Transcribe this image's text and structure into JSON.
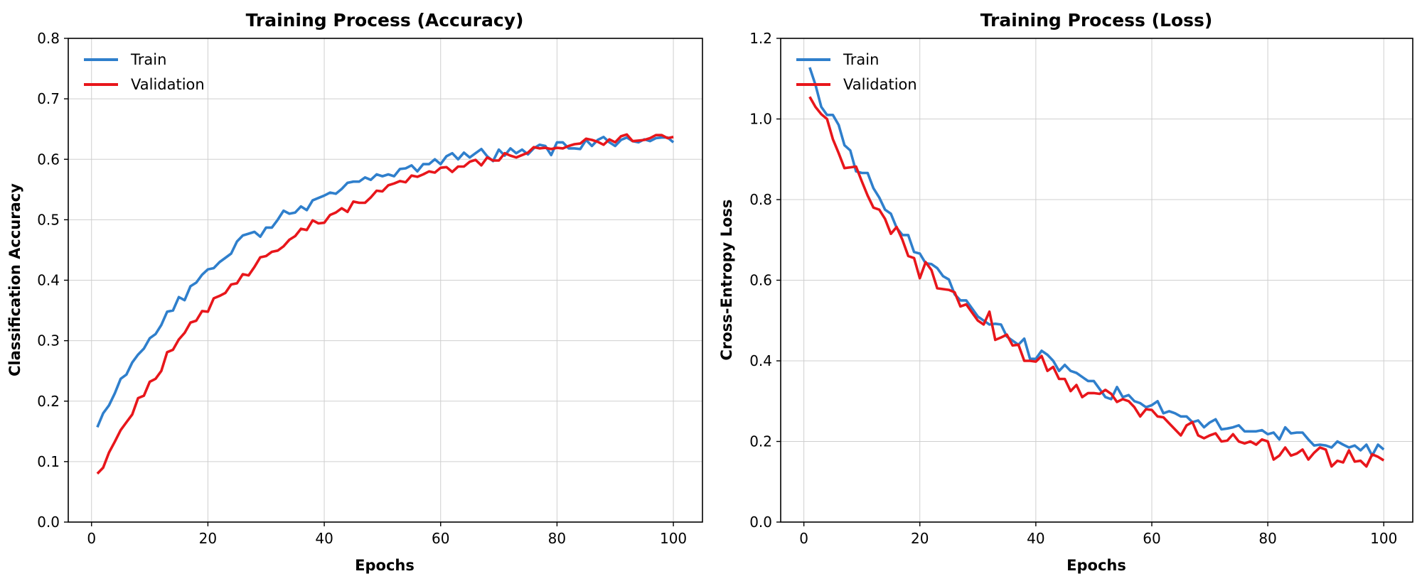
{
  "colors": {
    "train": "#2f7fcc",
    "validation": "#e8161b"
  },
  "chart_data": [
    {
      "type": "line",
      "title": "Training Process (Accuracy)",
      "xlabel": "Epochs",
      "ylabel": "Classification Accuracy",
      "xlim": [
        -4,
        105
      ],
      "ylim": [
        0,
        0.8
      ],
      "xticks": [
        0,
        20,
        40,
        60,
        80,
        100
      ],
      "yticks": [
        "0.0",
        "0.1",
        "0.2",
        "0.3",
        "0.4",
        "0.5",
        "0.6",
        "0.7",
        "0.8"
      ],
      "grid": true,
      "legend": "top-left",
      "x_start": 1,
      "series": [
        {
          "name": "Train",
          "key": "train",
          "values": [
            0.157,
            0.18,
            0.193,
            0.213,
            0.237,
            0.244,
            0.264,
            0.277,
            0.287,
            0.304,
            0.311,
            0.326,
            0.348,
            0.35,
            0.372,
            0.367,
            0.39,
            0.396,
            0.409,
            0.418,
            0.42,
            0.43,
            0.437,
            0.444,
            0.464,
            0.474,
            0.477,
            0.48,
            0.472,
            0.487,
            0.487,
            0.5,
            0.515,
            0.51,
            0.512,
            0.522,
            0.516,
            0.532,
            0.536,
            0.54,
            0.545,
            0.543,
            0.551,
            0.561,
            0.563,
            0.563,
            0.57,
            0.566,
            0.575,
            0.572,
            0.575,
            0.572,
            0.584,
            0.585,
            0.59,
            0.58,
            0.592,
            0.592,
            0.6,
            0.592,
            0.605,
            0.61,
            0.6,
            0.611,
            0.603,
            0.61,
            0.617,
            0.605,
            0.597,
            0.616,
            0.606,
            0.618,
            0.61,
            0.616,
            0.608,
            0.618,
            0.624,
            0.622,
            0.607,
            0.628,
            0.628,
            0.618,
            0.618,
            0.617,
            0.632,
            0.622,
            0.632,
            0.637,
            0.628,
            0.622,
            0.632,
            0.636,
            0.63,
            0.628,
            0.633,
            0.63,
            0.635,
            0.636,
            0.636,
            0.628
          ]
        },
        {
          "name": "Validation",
          "key": "validation",
          "values": [
            0.08,
            0.09,
            0.115,
            0.133,
            0.152,
            0.165,
            0.178,
            0.205,
            0.209,
            0.232,
            0.237,
            0.25,
            0.281,
            0.285,
            0.302,
            0.313,
            0.33,
            0.333,
            0.349,
            0.348,
            0.37,
            0.374,
            0.379,
            0.393,
            0.395,
            0.41,
            0.408,
            0.422,
            0.438,
            0.44,
            0.447,
            0.449,
            0.456,
            0.467,
            0.473,
            0.485,
            0.483,
            0.499,
            0.494,
            0.495,
            0.508,
            0.512,
            0.519,
            0.513,
            0.53,
            0.528,
            0.528,
            0.537,
            0.548,
            0.547,
            0.557,
            0.56,
            0.564,
            0.562,
            0.573,
            0.571,
            0.575,
            0.58,
            0.578,
            0.586,
            0.587,
            0.579,
            0.588,
            0.588,
            0.596,
            0.599,
            0.59,
            0.603,
            0.598,
            0.598,
            0.61,
            0.606,
            0.603,
            0.607,
            0.611,
            0.62,
            0.618,
            0.619,
            0.617,
            0.619,
            0.618,
            0.622,
            0.625,
            0.626,
            0.634,
            0.632,
            0.629,
            0.624,
            0.633,
            0.628,
            0.638,
            0.641,
            0.63,
            0.631,
            0.632,
            0.635,
            0.64,
            0.64,
            0.635,
            0.637
          ]
        }
      ]
    },
    {
      "type": "line",
      "title": "Training Process (Loss)",
      "xlabel": "Epochs",
      "ylabel": "Cross-Entropy Loss",
      "xlim": [
        -4,
        105
      ],
      "ylim": [
        0,
        1.2
      ],
      "xticks": [
        0,
        20,
        40,
        60,
        80,
        100
      ],
      "yticks": [
        "0.0",
        "0.2",
        "0.4",
        "0.6",
        "0.8",
        "1.0",
        "1.2"
      ],
      "grid": true,
      "legend": "top-left",
      "x_start": 1,
      "series": [
        {
          "name": "Train",
          "key": "train",
          "values": [
            1.128,
            1.085,
            1.03,
            1.01,
            1.01,
            0.985,
            0.935,
            0.922,
            0.87,
            0.866,
            0.866,
            0.828,
            0.805,
            0.775,
            0.765,
            0.73,
            0.712,
            0.712,
            0.67,
            0.666,
            0.642,
            0.64,
            0.63,
            0.61,
            0.602,
            0.565,
            0.55,
            0.55,
            0.53,
            0.51,
            0.5,
            0.49,
            0.492,
            0.49,
            0.46,
            0.45,
            0.44,
            0.455,
            0.405,
            0.405,
            0.425,
            0.415,
            0.4,
            0.375,
            0.39,
            0.375,
            0.37,
            0.36,
            0.35,
            0.35,
            0.33,
            0.31,
            0.305,
            0.335,
            0.31,
            0.315,
            0.3,
            0.295,
            0.285,
            0.29,
            0.3,
            0.27,
            0.275,
            0.27,
            0.262,
            0.262,
            0.248,
            0.252,
            0.235,
            0.247,
            0.255,
            0.23,
            0.232,
            0.235,
            0.24,
            0.225,
            0.225,
            0.225,
            0.228,
            0.218,
            0.222,
            0.205,
            0.235,
            0.22,
            0.222,
            0.222,
            0.205,
            0.19,
            0.192,
            0.19,
            0.185,
            0.2,
            0.192,
            0.185,
            0.19,
            0.178,
            0.192,
            0.165,
            0.192,
            0.18
          ]
        },
        {
          "name": "Validation",
          "key": "validation",
          "values": [
            1.055,
            1.03,
            1.012,
            1.0,
            0.95,
            0.915,
            0.878,
            0.88,
            0.882,
            0.845,
            0.81,
            0.78,
            0.775,
            0.752,
            0.715,
            0.732,
            0.7,
            0.66,
            0.655,
            0.605,
            0.645,
            0.625,
            0.58,
            0.578,
            0.576,
            0.57,
            0.535,
            0.54,
            0.52,
            0.5,
            0.49,
            0.522,
            0.452,
            0.458,
            0.465,
            0.438,
            0.44,
            0.4,
            0.4,
            0.398,
            0.412,
            0.375,
            0.385,
            0.355,
            0.355,
            0.325,
            0.34,
            0.31,
            0.32,
            0.32,
            0.318,
            0.328,
            0.318,
            0.298,
            0.305,
            0.3,
            0.285,
            0.262,
            0.28,
            0.278,
            0.262,
            0.26,
            0.245,
            0.23,
            0.215,
            0.24,
            0.248,
            0.215,
            0.208,
            0.215,
            0.22,
            0.2,
            0.202,
            0.218,
            0.2,
            0.195,
            0.2,
            0.192,
            0.205,
            0.2,
            0.155,
            0.165,
            0.185,
            0.165,
            0.17,
            0.18,
            0.155,
            0.172,
            0.185,
            0.18,
            0.138,
            0.152,
            0.148,
            0.178,
            0.15,
            0.152,
            0.138,
            0.168,
            0.162,
            0.153
          ]
        }
      ]
    }
  ]
}
